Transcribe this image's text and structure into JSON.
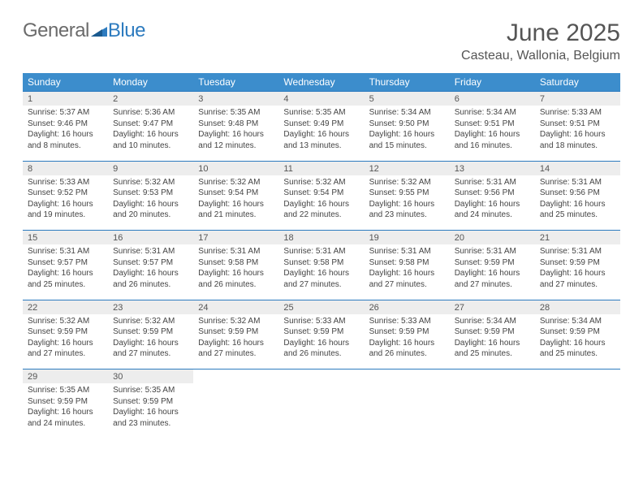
{
  "logo": {
    "part1": "General",
    "part2": "Blue"
  },
  "title": "June 2025",
  "location": "Casteau, Wallonia, Belgium",
  "colors": {
    "header_bg": "#3c8dcc",
    "header_text": "#ffffff",
    "daynum_bg": "#ededed",
    "row_divider": "#2d7bbf",
    "body_text": "#444444",
    "title_text": "#555555",
    "logo_gray": "#6b6b6b",
    "logo_blue": "#2d7bbf"
  },
  "weekdays": [
    "Sunday",
    "Monday",
    "Tuesday",
    "Wednesday",
    "Thursday",
    "Friday",
    "Saturday"
  ],
  "weeks": [
    [
      {
        "n": "1",
        "sr": "5:37 AM",
        "ss": "9:46 PM",
        "dl": "16 hours and 8 minutes."
      },
      {
        "n": "2",
        "sr": "5:36 AM",
        "ss": "9:47 PM",
        "dl": "16 hours and 10 minutes."
      },
      {
        "n": "3",
        "sr": "5:35 AM",
        "ss": "9:48 PM",
        "dl": "16 hours and 12 minutes."
      },
      {
        "n": "4",
        "sr": "5:35 AM",
        "ss": "9:49 PM",
        "dl": "16 hours and 13 minutes."
      },
      {
        "n": "5",
        "sr": "5:34 AM",
        "ss": "9:50 PM",
        "dl": "16 hours and 15 minutes."
      },
      {
        "n": "6",
        "sr": "5:34 AM",
        "ss": "9:51 PM",
        "dl": "16 hours and 16 minutes."
      },
      {
        "n": "7",
        "sr": "5:33 AM",
        "ss": "9:51 PM",
        "dl": "16 hours and 18 minutes."
      }
    ],
    [
      {
        "n": "8",
        "sr": "5:33 AM",
        "ss": "9:52 PM",
        "dl": "16 hours and 19 minutes."
      },
      {
        "n": "9",
        "sr": "5:32 AM",
        "ss": "9:53 PM",
        "dl": "16 hours and 20 minutes."
      },
      {
        "n": "10",
        "sr": "5:32 AM",
        "ss": "9:54 PM",
        "dl": "16 hours and 21 minutes."
      },
      {
        "n": "11",
        "sr": "5:32 AM",
        "ss": "9:54 PM",
        "dl": "16 hours and 22 minutes."
      },
      {
        "n": "12",
        "sr": "5:32 AM",
        "ss": "9:55 PM",
        "dl": "16 hours and 23 minutes."
      },
      {
        "n": "13",
        "sr": "5:31 AM",
        "ss": "9:56 PM",
        "dl": "16 hours and 24 minutes."
      },
      {
        "n": "14",
        "sr": "5:31 AM",
        "ss": "9:56 PM",
        "dl": "16 hours and 25 minutes."
      }
    ],
    [
      {
        "n": "15",
        "sr": "5:31 AM",
        "ss": "9:57 PM",
        "dl": "16 hours and 25 minutes."
      },
      {
        "n": "16",
        "sr": "5:31 AM",
        "ss": "9:57 PM",
        "dl": "16 hours and 26 minutes."
      },
      {
        "n": "17",
        "sr": "5:31 AM",
        "ss": "9:58 PM",
        "dl": "16 hours and 26 minutes."
      },
      {
        "n": "18",
        "sr": "5:31 AM",
        "ss": "9:58 PM",
        "dl": "16 hours and 27 minutes."
      },
      {
        "n": "19",
        "sr": "5:31 AM",
        "ss": "9:58 PM",
        "dl": "16 hours and 27 minutes."
      },
      {
        "n": "20",
        "sr": "5:31 AM",
        "ss": "9:59 PM",
        "dl": "16 hours and 27 minutes."
      },
      {
        "n": "21",
        "sr": "5:31 AM",
        "ss": "9:59 PM",
        "dl": "16 hours and 27 minutes."
      }
    ],
    [
      {
        "n": "22",
        "sr": "5:32 AM",
        "ss": "9:59 PM",
        "dl": "16 hours and 27 minutes."
      },
      {
        "n": "23",
        "sr": "5:32 AM",
        "ss": "9:59 PM",
        "dl": "16 hours and 27 minutes."
      },
      {
        "n": "24",
        "sr": "5:32 AM",
        "ss": "9:59 PM",
        "dl": "16 hours and 27 minutes."
      },
      {
        "n": "25",
        "sr": "5:33 AM",
        "ss": "9:59 PM",
        "dl": "16 hours and 26 minutes."
      },
      {
        "n": "26",
        "sr": "5:33 AM",
        "ss": "9:59 PM",
        "dl": "16 hours and 26 minutes."
      },
      {
        "n": "27",
        "sr": "5:34 AM",
        "ss": "9:59 PM",
        "dl": "16 hours and 25 minutes."
      },
      {
        "n": "28",
        "sr": "5:34 AM",
        "ss": "9:59 PM",
        "dl": "16 hours and 25 minutes."
      }
    ],
    [
      {
        "n": "29",
        "sr": "5:35 AM",
        "ss": "9:59 PM",
        "dl": "16 hours and 24 minutes."
      },
      {
        "n": "30",
        "sr": "5:35 AM",
        "ss": "9:59 PM",
        "dl": "16 hours and 23 minutes."
      },
      null,
      null,
      null,
      null,
      null
    ]
  ],
  "labels": {
    "sunrise": "Sunrise:",
    "sunset": "Sunset:",
    "daylight": "Daylight:"
  }
}
